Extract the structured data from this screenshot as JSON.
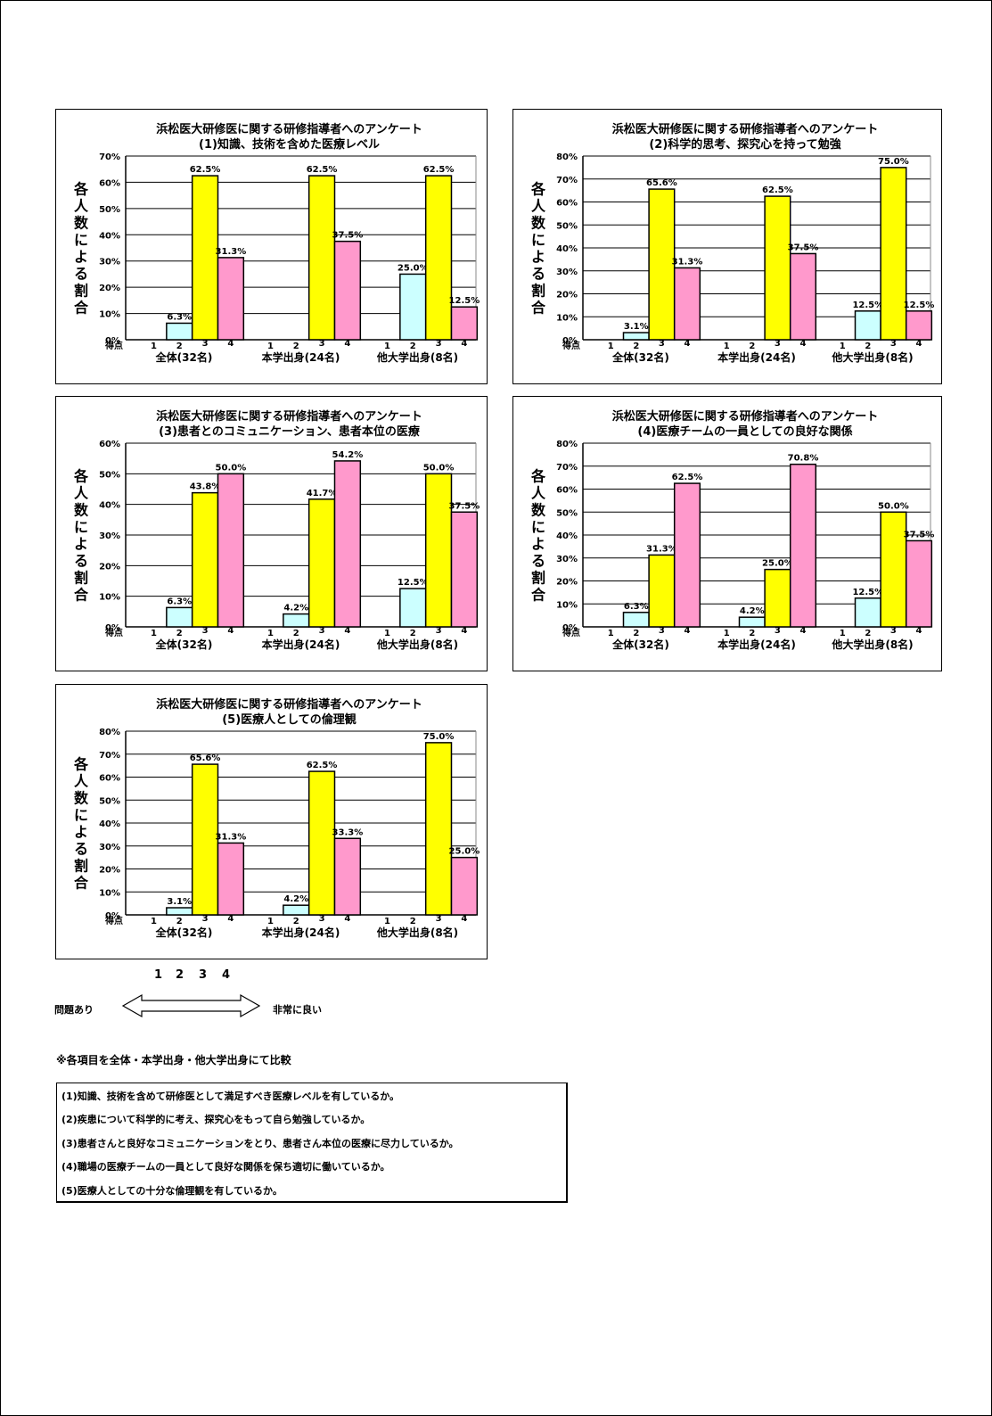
{
  "colors": {
    "score1": "#ccffff",
    "score3": "#ffff00",
    "score4": "#ff99cc",
    "axis": "#000000",
    "plot_bg": "#ffffff"
  },
  "chart_data": [
    {
      "type": "bar",
      "title_line1": "浜松医大研修医に関する研修指導者へのアンケート",
      "title_line2": "(1)知識、技術を含めた医療レベル",
      "ylabel": "各人数による割合",
      "xlabel_prefix": "得点",
      "ylim": [
        0,
        0.7
      ],
      "yticks": [
        "0%",
        "10%",
        "20%",
        "30%",
        "40%",
        "50%",
        "60%",
        "70%"
      ],
      "categories": [
        "全体(32名)",
        "本学出身(24名)",
        "他大学出身(8名)"
      ],
      "score_ticks": [
        "1",
        "2",
        "3",
        "4"
      ],
      "series": [
        {
          "score": "2",
          "values": [
            0.063,
            null,
            0.25
          ],
          "labels": [
            "6.3%",
            "",
            "25.0%"
          ]
        },
        {
          "score": "3",
          "values": [
            0.625,
            0.625,
            0.625
          ],
          "labels": [
            "62.5%",
            "62.5%",
            "62.5%"
          ]
        },
        {
          "score": "4",
          "values": [
            0.313,
            0.375,
            0.125
          ],
          "labels": [
            "31.3%",
            "37.5%",
            "12.5%"
          ]
        }
      ]
    },
    {
      "type": "bar",
      "title_line1": "浜松医大研修医に関する研修指導者へのアンケート",
      "title_line2": "(2)科学的思考、探究心を持って勉強",
      "ylabel": "各人数による割合",
      "xlabel_prefix": "得点",
      "ylim": [
        0,
        0.8
      ],
      "yticks": [
        "0%",
        "10%",
        "20%",
        "30%",
        "40%",
        "50%",
        "60%",
        "70%",
        "80%"
      ],
      "categories": [
        "全体(32名)",
        "本学出身(24名)",
        "他大学出身(8名)"
      ],
      "score_ticks": [
        "1",
        "2",
        "3",
        "4"
      ],
      "series": [
        {
          "score": "2",
          "values": [
            0.031,
            null,
            0.125
          ],
          "labels": [
            "3.1%",
            "",
            "12.5%"
          ]
        },
        {
          "score": "3",
          "values": [
            0.656,
            0.625,
            0.75
          ],
          "labels": [
            "65.6%",
            "62.5%",
            "75.0%"
          ]
        },
        {
          "score": "4",
          "values": [
            0.313,
            0.375,
            0.125
          ],
          "labels": [
            "31.3%",
            "37.5%",
            "12.5%"
          ]
        }
      ]
    },
    {
      "type": "bar",
      "title_line1": "浜松医大研修医に関する研修指導者へのアンケート",
      "title_line2": "(3)患者とのコミュニケーション、患者本位の医療",
      "ylabel": "各人数による割合",
      "xlabel_prefix": "得点",
      "ylim": [
        0,
        0.6
      ],
      "yticks": [
        "0%",
        "10%",
        "20%",
        "30%",
        "40%",
        "50%",
        "60%"
      ],
      "categories": [
        "全体(32名)",
        "本学出身(24名)",
        "他大学出身(8名)"
      ],
      "score_ticks": [
        "1",
        "2",
        "3",
        "4"
      ],
      "series": [
        {
          "score": "2",
          "values": [
            0.063,
            0.042,
            0.125
          ],
          "labels": [
            "6.3%",
            "4.2%",
            "12.5%"
          ]
        },
        {
          "score": "3",
          "values": [
            0.438,
            0.417,
            0.5
          ],
          "labels": [
            "43.8%",
            "41.7%",
            "50.0%"
          ]
        },
        {
          "score": "4",
          "values": [
            0.5,
            0.542,
            0.375
          ],
          "labels": [
            "50.0%",
            "54.2%",
            "37.5%"
          ]
        }
      ]
    },
    {
      "type": "bar",
      "title_line1": "浜松医大研修医に関する研修指導者へのアンケート",
      "title_line2": "(4)医療チームの一員としての良好な関係",
      "ylabel": "各人数による割合",
      "xlabel_prefix": "得点",
      "ylim": [
        0,
        0.8
      ],
      "yticks": [
        "0%",
        "10%",
        "20%",
        "30%",
        "40%",
        "50%",
        "60%",
        "70%",
        "80%"
      ],
      "categories": [
        "全体(32名)",
        "本学出身(24名)",
        "他大学出身(8名)"
      ],
      "score_ticks": [
        "1",
        "2",
        "3",
        "4"
      ],
      "series": [
        {
          "score": "2",
          "values": [
            0.063,
            0.042,
            0.125
          ],
          "labels": [
            "6.3%",
            "4.2%",
            "12.5%"
          ]
        },
        {
          "score": "3",
          "values": [
            0.313,
            0.25,
            0.5
          ],
          "labels": [
            "31.3%",
            "25.0%",
            "50.0%"
          ]
        },
        {
          "score": "4",
          "values": [
            0.625,
            0.708,
            0.375
          ],
          "labels": [
            "62.5%",
            "70.8%",
            "37.5%"
          ]
        }
      ]
    },
    {
      "type": "bar",
      "title_line1": "浜松医大研修医に関する研修指導者へのアンケート",
      "title_line2": "(5)医療人としての倫理観",
      "ylabel": "各人数による割合",
      "xlabel_prefix": "得点",
      "ylim": [
        0,
        0.8
      ],
      "yticks": [
        "0%",
        "10%",
        "20%",
        "30%",
        "40%",
        "50%",
        "60%",
        "70%",
        "80%"
      ],
      "categories": [
        "全体(32名)",
        "本学出身(24名)",
        "他大学出身(8名)"
      ],
      "score_ticks": [
        "1",
        "2",
        "3",
        "4"
      ],
      "series": [
        {
          "score": "2",
          "values": [
            0.031,
            0.042,
            null
          ],
          "labels": [
            "3.1%",
            "4.2%",
            ""
          ]
        },
        {
          "score": "3",
          "values": [
            0.656,
            0.625,
            0.75
          ],
          "labels": [
            "65.6%",
            "62.5%",
            "75.0%"
          ]
        },
        {
          "score": "4",
          "values": [
            0.313,
            0.333,
            0.25
          ],
          "labels": [
            "31.3%",
            "33.3%",
            "25.0%"
          ]
        }
      ]
    }
  ],
  "scale": {
    "numbers": [
      "1",
      "2",
      "3",
      "4"
    ],
    "left_label": "問題あり",
    "right_label": "非常に良い"
  },
  "compare_note": "※各項目を全体・本学出身・他大学出身にて比較",
  "legend_items": [
    "(1)知識、技術を含めて研修医として満足すべき医療レベルを有しているか。",
    "(2)疾患について科学的に考え、探究心をもって自ら勉強しているか。",
    "(3)患者さんと良好なコミュニケーションをとり、患者さん本位の医療に尽力しているか。",
    "(4)職場の医療チームの一員として良好な関係を保ち適切に働いているか。",
    "(5)医療人としての十分な倫理観を有しているか。"
  ]
}
